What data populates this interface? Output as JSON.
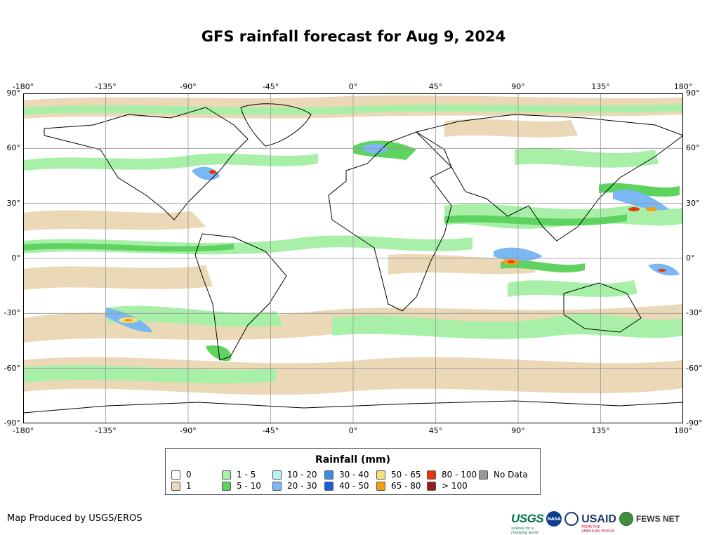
{
  "title": "GFS rainfall forecast for Aug 9, 2024",
  "map": {
    "extent": {
      "lon": [
        -180,
        180
      ],
      "lat": [
        -90,
        90
      ]
    },
    "lon_ticks": [
      "-180°",
      "-135°",
      "-90°",
      "-45°",
      "0°",
      "45°",
      "90°",
      "135°",
      "180°"
    ],
    "lat_ticks": [
      "90°",
      "60°",
      "30°",
      "0°",
      "-30°",
      "-60°",
      "-90°"
    ],
    "gridlines": true,
    "colors": {
      "ocean_bg": "#ffffff",
      "coastline": "#000000",
      "grid": "#999999"
    }
  },
  "legend": {
    "title": "Rainfall (mm)",
    "items": [
      {
        "label": "0",
        "color": "#ffffff"
      },
      {
        "label": "1",
        "color": "#ead8b6"
      },
      {
        "label": "1 - 5",
        "color": "#a8f0a8"
      },
      {
        "label": "5 - 10",
        "color": "#5fd35f"
      },
      {
        "label": "10 - 20",
        "color": "#b8f0f8"
      },
      {
        "label": "20 - 30",
        "color": "#7ab7f5"
      },
      {
        "label": "30 - 40",
        "color": "#3d8be6"
      },
      {
        "label": "40 - 50",
        "color": "#1b5fd8"
      },
      {
        "label": "50 - 65",
        "color": "#f6e07a"
      },
      {
        "label": "65 - 80",
        "color": "#f59e12"
      },
      {
        "label": "80 - 100",
        "color": "#e83410"
      },
      {
        "label": "> 100",
        "color": "#9a1a1a"
      },
      {
        "label": "No Data",
        "color": "#999999"
      }
    ]
  },
  "credit": "Map Produced by USGS/EROS",
  "logos": {
    "usgs": "USGS",
    "usgs_tagline": "science for a changing world",
    "nasa": "NASA",
    "usaid": "USAID",
    "usaid_tagline": "FROM THE AMERICAN PEOPLE",
    "fews": "FEWS NET"
  }
}
